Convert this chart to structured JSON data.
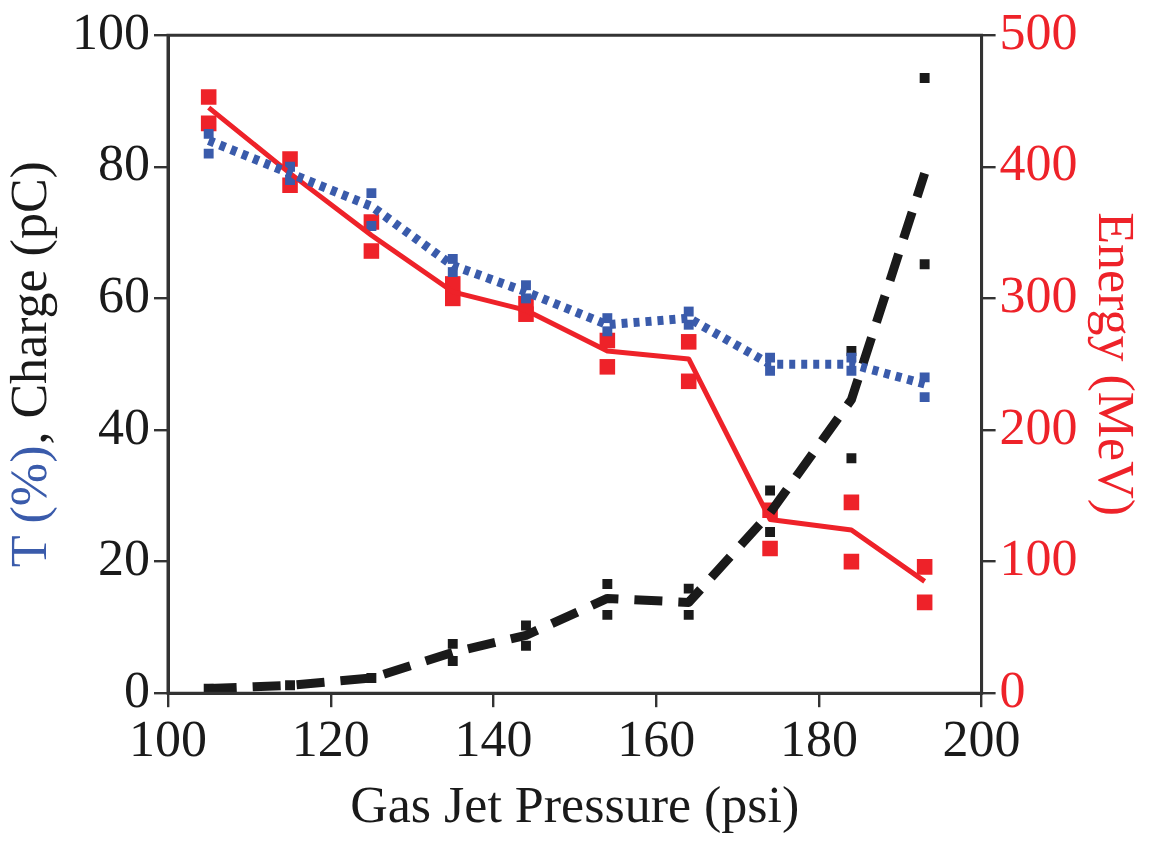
{
  "chart_data": {
    "type": "line",
    "xlabel": "Gas Jet Pressure (psi)",
    "ylabel": "T (%), Charge (pC)",
    "y2label": "Energy (MeV)",
    "x": [
      105,
      115,
      125,
      135,
      144,
      154,
      164,
      174,
      184,
      193
    ],
    "xlim": [
      100,
      200
    ],
    "xticks": [
      100,
      120,
      140,
      160,
      180,
      200
    ],
    "ylim": [
      0,
      100
    ],
    "yticks": [
      0,
      20,
      40,
      60,
      80,
      100
    ],
    "y2lim": [
      0,
      500
    ],
    "y2ticks": [
      0,
      100,
      200,
      300,
      400,
      500
    ],
    "grid": false,
    "legend": false,
    "series": [
      {
        "color": "#3a5bab",
        "line_style": "dotted",
        "marker": "none",
        "values": [
          84,
          79,
          74,
          65,
          61,
          56,
          57,
          50,
          50,
          47
        ]
      },
      {
        "color": "#1a1a1a",
        "line_style": "dashed",
        "marker": "none",
        "values": [
          0.7,
          1.2,
          2.3,
          6.2,
          8.8,
          14.4,
          13.8,
          27.4,
          44.6,
          79
        ]
      },
      {
        "color": "#ee2229",
        "line_style": "solid",
        "marker": "none",
        "axis": "y2",
        "values": [
          445,
          395,
          348,
          305,
          291,
          260,
          254,
          132,
          124,
          85
        ]
      },
      {
        "type": "scatter",
        "color": "#3a5bab",
        "marker": "square",
        "values": [
          82,
          78,
          71,
          64,
          60,
          55,
          56,
          49,
          49,
          45
        ]
      },
      {
        "type": "scatter",
        "color": "#3a5bab",
        "marker": "square",
        "values": [
          85,
          80,
          76,
          66,
          62,
          57,
          58,
          51,
          51,
          48
        ]
      },
      {
        "type": "scatter",
        "color": "#1a1a1a",
        "marker": "square",
        "values": [
          0.7,
          1.2,
          2.3,
          4.9,
          7.2,
          11.9,
          11.9,
          24.5,
          35.7,
          65.2
        ]
      },
      {
        "type": "scatter",
        "color": "#1a1a1a",
        "marker": "square",
        "values": [
          null,
          null,
          null,
          7.5,
          10.3,
          16.6,
          15.9,
          30.8,
          52,
          93.5
        ]
      },
      {
        "type": "scatter",
        "color": "#ee2229",
        "marker": "square",
        "axis": "y2",
        "values": [
          433,
          386,
          336,
          300,
          288,
          248,
          237,
          110,
          100,
          69
        ]
      },
      {
        "type": "scatter",
        "color": "#ee2229",
        "marker": "square",
        "axis": "y2",
        "values": [
          453,
          406,
          358,
          311,
          296,
          268,
          267,
          139,
          145,
          96
        ]
      }
    ]
  }
}
